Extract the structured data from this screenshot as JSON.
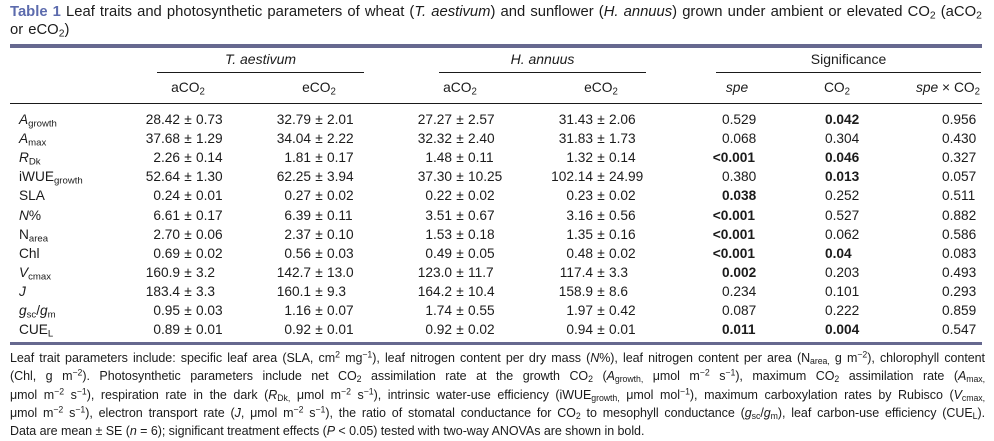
{
  "colors": {
    "table_label": "#5c6bad",
    "rule": "#66688f"
  },
  "caption": {
    "label": "Table 1",
    "line1": "Leaf traits and photosynthetic parameters of wheat (*T. aestivum*) and sunflower (*H. annuus*) grown under ambient or elevated CO~2~ (aCO~2~",
    "line2": "or eCO~2~)"
  },
  "header": {
    "groups": [
      {
        "label": "*T. aestivum*"
      },
      {
        "label": "*H. annuus*"
      },
      {
        "label": "Significance"
      }
    ],
    "subheads": [
      "aCO~2~",
      "eCO~2~",
      "aCO~2~",
      "eCO~2~",
      "*spe*",
      "CO~2~",
      "*spe* × CO~2~"
    ]
  },
  "rows": [
    {
      "label": "*A*~growth~",
      "values": [
        {
          "mean": "28.42",
          "se": "0.73"
        },
        {
          "mean": "32.79",
          "se": "2.01"
        },
        {
          "mean": "27.27",
          "se": "2.57"
        },
        {
          "mean": "31.43",
          "se": "2.06"
        }
      ],
      "sig": [
        {
          "v": "0.529"
        },
        {
          "v": "0.042",
          "bold": true
        },
        {
          "v": "0.956"
        }
      ]
    },
    {
      "label": "*A*~max~",
      "values": [
        {
          "mean": "37.68",
          "se": "1.29"
        },
        {
          "mean": "34.04",
          "se": "2.22"
        },
        {
          "mean": "32.32",
          "se": "2.40"
        },
        {
          "mean": "31.83",
          "se": "1.73"
        }
      ],
      "sig": [
        {
          "v": "0.068"
        },
        {
          "v": "0.304"
        },
        {
          "v": "0.430"
        }
      ]
    },
    {
      "label": "*R*~Dk~",
      "values": [
        {
          "mean": "2.26",
          "se": "0.14"
        },
        {
          "mean": "1.81",
          "se": "0.17"
        },
        {
          "mean": "1.48",
          "se": "0.11"
        },
        {
          "mean": "1.32",
          "se": "0.14"
        }
      ],
      "sig": [
        {
          "v": "<0.001",
          "bold": true
        },
        {
          "v": "0.046",
          "bold": true
        },
        {
          "v": "0.327"
        }
      ]
    },
    {
      "label": "iWUE~growth~",
      "values": [
        {
          "mean": "52.64",
          "se": "1.30"
        },
        {
          "mean": "62.25",
          "se": "3.94"
        },
        {
          "mean": "37.30",
          "se": "10.25"
        },
        {
          "mean": "102.14",
          "se": "24.99"
        }
      ],
      "sig": [
        {
          "v": "0.380"
        },
        {
          "v": "0.013",
          "bold": true
        },
        {
          "v": "0.057"
        }
      ]
    },
    {
      "label": "SLA",
      "values": [
        {
          "mean": "0.24",
          "se": "0.01"
        },
        {
          "mean": "0.27",
          "se": "0.02"
        },
        {
          "mean": "0.22",
          "se": "0.02"
        },
        {
          "mean": "0.23",
          "se": "0.02"
        }
      ],
      "sig": [
        {
          "v": "0.038",
          "bold": true
        },
        {
          "v": "0.252"
        },
        {
          "v": "0.511"
        }
      ]
    },
    {
      "label": "*N*%",
      "values": [
        {
          "mean": "6.61",
          "se": "0.17"
        },
        {
          "mean": "6.39",
          "se": "0.11"
        },
        {
          "mean": "3.51",
          "se": "0.67"
        },
        {
          "mean": "3.16",
          "se": "0.56"
        }
      ],
      "sig": [
        {
          "v": "<0.001",
          "bold": true
        },
        {
          "v": "0.527"
        },
        {
          "v": "0.882"
        }
      ]
    },
    {
      "label": "N~area~",
      "values": [
        {
          "mean": "2.70",
          "se": "0.06"
        },
        {
          "mean": "2.37",
          "se": "0.10"
        },
        {
          "mean": "1.53",
          "se": "0.18"
        },
        {
          "mean": "1.35",
          "se": "0.16"
        }
      ],
      "sig": [
        {
          "v": "<0.001",
          "bold": true
        },
        {
          "v": "0.062"
        },
        {
          "v": "0.586"
        }
      ]
    },
    {
      "label": "Chl",
      "values": [
        {
          "mean": "0.69",
          "se": "0.02"
        },
        {
          "mean": "0.56",
          "se": "0.03"
        },
        {
          "mean": "0.49",
          "se": "0.05"
        },
        {
          "mean": "0.48",
          "se": "0.02"
        }
      ],
      "sig": [
        {
          "v": "<0.001",
          "bold": true
        },
        {
          "v": "0.04",
          "bold": true
        },
        {
          "v": "0.083"
        }
      ]
    },
    {
      "label": "*V*~cmax~",
      "values": [
        {
          "mean": "160.9",
          "se": "3.2"
        },
        {
          "mean": "142.7",
          "se": "13.0"
        },
        {
          "mean": "123.0",
          "se": "11.7"
        },
        {
          "mean": "117.4",
          "se": "3.3"
        }
      ],
      "sig": [
        {
          "v": "0.002",
          "bold": true
        },
        {
          "v": "0.203"
        },
        {
          "v": "0.493"
        }
      ]
    },
    {
      "label": "*J*",
      "values": [
        {
          "mean": "183.4",
          "se": "3.3"
        },
        {
          "mean": "160.1",
          "se": "9.3"
        },
        {
          "mean": "164.2",
          "se": "10.4"
        },
        {
          "mean": "158.9",
          "se": "8.6"
        }
      ],
      "sig": [
        {
          "v": "0.234"
        },
        {
          "v": "0.101"
        },
        {
          "v": "0.293"
        }
      ]
    },
    {
      "label": "*g*~sc~/*g*~m~",
      "values": [
        {
          "mean": "0.95",
          "se": "0.03"
        },
        {
          "mean": "1.16",
          "se": "0.07"
        },
        {
          "mean": "1.74",
          "se": "0.55"
        },
        {
          "mean": "1.97",
          "se": "0.42"
        }
      ],
      "sig": [
        {
          "v": "0.087"
        },
        {
          "v": "0.222"
        },
        {
          "v": "0.859"
        }
      ]
    },
    {
      "label": "CUE~L~",
      "values": [
        {
          "mean": "0.89",
          "se": "0.01"
        },
        {
          "mean": "0.92",
          "se": "0.01"
        },
        {
          "mean": "0.92",
          "se": "0.02"
        },
        {
          "mean": "0.94",
          "se": "0.01"
        }
      ],
      "sig": [
        {
          "v": "0.011",
          "bold": true
        },
        {
          "v": "0.004",
          "bold": true
        },
        {
          "v": "0.547"
        }
      ]
    }
  ],
  "plus_minus": "±",
  "footnote": {
    "lines": [
      "Leaf trait parameters include: specific leaf area (SLA, cm^2^ mg^−1^), leaf nitrogen content per dry mass (*N*%), leaf nitrogen content per area (N~area,~ g m^−2^), chlorophyll content",
      "(Chl, g m^−2^). Photosynthetic parameters include net CO~2~ assimilation rate at the growth CO~2~ (*A*~growth,~ μmol m^−2^ s^−1^), maximum CO~2~ assimilation rate (*A*~max,~",
      "μmol m^−2^ s^−1^), respiration rate in the dark (*R*~Dk,~ μmol m^−2^ s^−1^), intrinsic water-use efficiency (iWUE~growth,~ μmol mol^−1^), maximum carboxylation rates by Rubisco (*V*~cmax,~",
      "μmol m^−2^ s^−1^), electron transport rate (*J*, μmol m^−2^ s^−1^), the ratio of stomatal conductance for CO~2~ to mesophyll conductance (*g*~sc~/*g*~m~), leaf carbon-use efficiency (CUE~L~).",
      "Data are mean ± SE (*n* = 6); significant treatment effects (*P* < 0.05) tested with two-way ANOVAs are shown in bold."
    ]
  }
}
